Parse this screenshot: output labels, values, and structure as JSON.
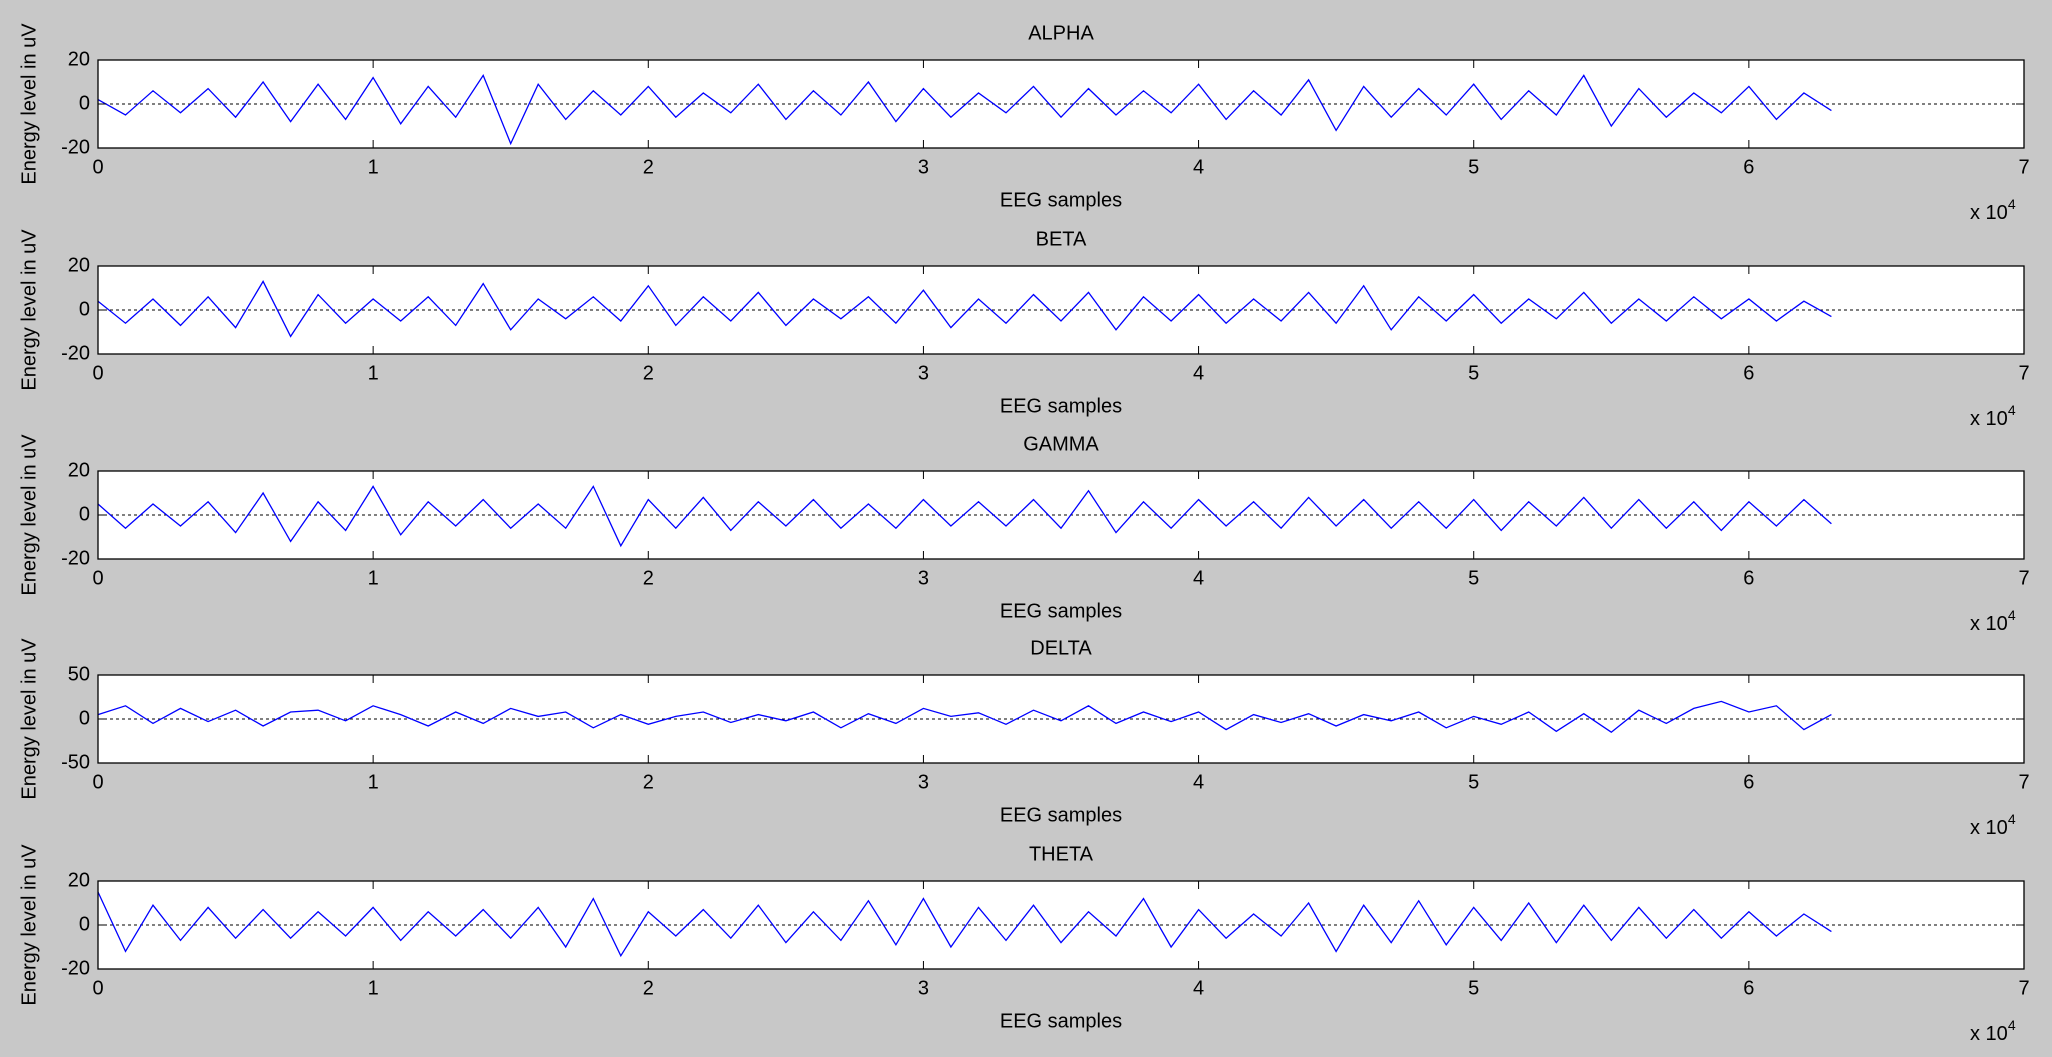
{
  "chart_data": [
    {
      "type": "line",
      "title": "ALPHA",
      "xlabel": "EEG samples",
      "ylabel": "Energy level in uV",
      "x_scale_label": "x 10",
      "x_scale_exponent": "4",
      "zero_line": true,
      "xlim": [
        0,
        70000
      ],
      "xticks": [
        0,
        {
          "value": 10000,
          "label": "1"
        },
        {
          "value": 20000,
          "label": "2"
        },
        {
          "value": 30000,
          "label": "3"
        },
        {
          "value": 40000,
          "label": "4"
        },
        {
          "value": 50000,
          "label": "5"
        },
        {
          "value": 60000,
          "label": "6"
        },
        {
          "value": 70000,
          "label": "7"
        }
      ],
      "ylim": [
        -20,
        20
      ],
      "yticks": [
        -20,
        0,
        20
      ],
      "x": [
        0,
        1000,
        2000,
        3000,
        4000,
        5000,
        6000,
        7000,
        8000,
        9000,
        10000,
        11000,
        12000,
        13000,
        14000,
        15000,
        16000,
        17000,
        18000,
        19000,
        20000,
        21000,
        22000,
        23000,
        24000,
        25000,
        26000,
        27000,
        28000,
        29000,
        30000,
        31000,
        32000,
        33000,
        34000,
        35000,
        36000,
        37000,
        38000,
        39000,
        40000,
        41000,
        42000,
        43000,
        44000,
        45000,
        46000,
        47000,
        48000,
        49000,
        50000,
        51000,
        52000,
        53000,
        54000,
        55000,
        56000,
        57000,
        58000,
        59000,
        60000,
        61000,
        62000,
        63000
      ],
      "series": [
        {
          "color": "#0000ff",
          "values": [
            2,
            -5,
            6,
            -4,
            7,
            -6,
            10,
            -8,
            9,
            -7,
            12,
            -9,
            8,
            -6,
            13,
            -18,
            9,
            -7,
            6,
            -5,
            8,
            -6,
            5,
            -4,
            9,
            -7,
            6,
            -5,
            10,
            -8,
            7,
            -6,
            5,
            -4,
            8,
            -6,
            7,
            -5,
            6,
            -4,
            9,
            -7,
            6,
            -5,
            11,
            -12,
            8,
            -6,
            7,
            -5,
            9,
            -7,
            6,
            -5,
            13,
            -10,
            7,
            -6,
            5,
            -4,
            8,
            -7,
            5,
            -3
          ]
        }
      ]
    },
    {
      "type": "line",
      "title": "BETA",
      "xlabel": "EEG samples",
      "ylabel": "Energy level in uV",
      "x_scale_label": "x 10",
      "x_scale_exponent": "4",
      "zero_line": true,
      "xlim": [
        0,
        70000
      ],
      "xticks": [
        0,
        {
          "value": 10000,
          "label": "1"
        },
        {
          "value": 20000,
          "label": "2"
        },
        {
          "value": 30000,
          "label": "3"
        },
        {
          "value": 40000,
          "label": "4"
        },
        {
          "value": 50000,
          "label": "5"
        },
        {
          "value": 60000,
          "label": "6"
        },
        {
          "value": 70000,
          "label": "7"
        }
      ],
      "ylim": [
        -20,
        20
      ],
      "yticks": [
        -20,
        0,
        20
      ],
      "x": [
        0,
        1000,
        2000,
        3000,
        4000,
        5000,
        6000,
        7000,
        8000,
        9000,
        10000,
        11000,
        12000,
        13000,
        14000,
        15000,
        16000,
        17000,
        18000,
        19000,
        20000,
        21000,
        22000,
        23000,
        24000,
        25000,
        26000,
        27000,
        28000,
        29000,
        30000,
        31000,
        32000,
        33000,
        34000,
        35000,
        36000,
        37000,
        38000,
        39000,
        40000,
        41000,
        42000,
        43000,
        44000,
        45000,
        46000,
        47000,
        48000,
        49000,
        50000,
        51000,
        52000,
        53000,
        54000,
        55000,
        56000,
        57000,
        58000,
        59000,
        60000,
        61000,
        62000,
        63000
      ],
      "series": [
        {
          "color": "#0000ff",
          "values": [
            4,
            -6,
            5,
            -7,
            6,
            -8,
            13,
            -12,
            7,
            -6,
            5,
            -5,
            6,
            -7,
            12,
            -9,
            5,
            -4,
            6,
            -5,
            11,
            -7,
            6,
            -5,
            8,
            -7,
            5,
            -4,
            6,
            -6,
            9,
            -8,
            5,
            -6,
            7,
            -5,
            8,
            -9,
            6,
            -5,
            7,
            -6,
            5,
            -5,
            8,
            -6,
            11,
            -9,
            6,
            -5,
            7,
            -6,
            5,
            -4,
            8,
            -6,
            5,
            -5,
            6,
            -4,
            5,
            -5,
            4,
            -3
          ]
        }
      ]
    },
    {
      "type": "line",
      "title": "GAMMA",
      "xlabel": "EEG samples",
      "ylabel": "Energy level in uV",
      "x_scale_label": "x 10",
      "x_scale_exponent": "4",
      "zero_line": true,
      "xlim": [
        0,
        70000
      ],
      "xticks": [
        0,
        {
          "value": 10000,
          "label": "1"
        },
        {
          "value": 20000,
          "label": "2"
        },
        {
          "value": 30000,
          "label": "3"
        },
        {
          "value": 40000,
          "label": "4"
        },
        {
          "value": 50000,
          "label": "5"
        },
        {
          "value": 60000,
          "label": "6"
        },
        {
          "value": 70000,
          "label": "7"
        }
      ],
      "ylim": [
        -20,
        20
      ],
      "yticks": [
        -20,
        0,
        20
      ],
      "x": [
        0,
        1000,
        2000,
        3000,
        4000,
        5000,
        6000,
        7000,
        8000,
        9000,
        10000,
        11000,
        12000,
        13000,
        14000,
        15000,
        16000,
        17000,
        18000,
        19000,
        20000,
        21000,
        22000,
        23000,
        24000,
        25000,
        26000,
        27000,
        28000,
        29000,
        30000,
        31000,
        32000,
        33000,
        34000,
        35000,
        36000,
        37000,
        38000,
        39000,
        40000,
        41000,
        42000,
        43000,
        44000,
        45000,
        46000,
        47000,
        48000,
        49000,
        50000,
        51000,
        52000,
        53000,
        54000,
        55000,
        56000,
        57000,
        58000,
        59000,
        60000,
        61000,
        62000,
        63000
      ],
      "series": [
        {
          "color": "#0000ff",
          "values": [
            5,
            -6,
            5,
            -5,
            6,
            -8,
            10,
            -12,
            6,
            -7,
            13,
            -9,
            6,
            -5,
            7,
            -6,
            5,
            -6,
            13,
            -14,
            7,
            -6,
            8,
            -7,
            6,
            -5,
            7,
            -6,
            5,
            -6,
            7,
            -5,
            6,
            -5,
            7,
            -6,
            11,
            -8,
            6,
            -6,
            7,
            -5,
            6,
            -6,
            8,
            -5,
            7,
            -6,
            6,
            -6,
            7,
            -7,
            6,
            -5,
            8,
            -6,
            7,
            -6,
            6,
            -7,
            6,
            -5,
            7,
            -4
          ]
        }
      ]
    },
    {
      "type": "line",
      "title": "DELTA",
      "xlabel": "EEG samples",
      "ylabel": "Energy level in uV",
      "x_scale_label": "x 10",
      "x_scale_exponent": "4",
      "zero_line": true,
      "xlim": [
        0,
        70000
      ],
      "xticks": [
        0,
        {
          "value": 10000,
          "label": "1"
        },
        {
          "value": 20000,
          "label": "2"
        },
        {
          "value": 30000,
          "label": "3"
        },
        {
          "value": 40000,
          "label": "4"
        },
        {
          "value": 50000,
          "label": "5"
        },
        {
          "value": 60000,
          "label": "6"
        },
        {
          "value": 70000,
          "label": "7"
        }
      ],
      "ylim": [
        -50,
        50
      ],
      "yticks": [
        -50,
        0,
        50
      ],
      "x": [
        0,
        1000,
        2000,
        3000,
        4000,
        5000,
        6000,
        7000,
        8000,
        9000,
        10000,
        11000,
        12000,
        13000,
        14000,
        15000,
        16000,
        17000,
        18000,
        19000,
        20000,
        21000,
        22000,
        23000,
        24000,
        25000,
        26000,
        27000,
        28000,
        29000,
        30000,
        31000,
        32000,
        33000,
        34000,
        35000,
        36000,
        37000,
        38000,
        39000,
        40000,
        41000,
        42000,
        43000,
        44000,
        45000,
        46000,
        47000,
        48000,
        49000,
        50000,
        51000,
        52000,
        53000,
        54000,
        55000,
        56000,
        57000,
        58000,
        59000,
        60000,
        61000,
        62000,
        63000
      ],
      "series": [
        {
          "color": "#0000ff",
          "values": [
            5,
            15,
            -5,
            12,
            -3,
            10,
            -8,
            8,
            10,
            -2,
            15,
            5,
            -8,
            8,
            -5,
            12,
            3,
            8,
            -10,
            5,
            -6,
            3,
            8,
            -4,
            5,
            -2,
            8,
            -10,
            6,
            -5,
            12,
            3,
            7,
            -6,
            10,
            -2,
            15,
            -5,
            8,
            -3,
            8,
            -12,
            5,
            -4,
            6,
            -8,
            5,
            -2,
            8,
            -10,
            3,
            -6,
            8,
            -14,
            6,
            -15,
            10,
            -5,
            12,
            20,
            8,
            15,
            -12,
            5
          ]
        }
      ]
    },
    {
      "type": "line",
      "title": "THETA",
      "xlabel": "EEG samples",
      "ylabel": "Energy level in uV",
      "x_scale_label": "x 10",
      "x_scale_exponent": "4",
      "zero_line": true,
      "xlim": [
        0,
        70000
      ],
      "xticks": [
        0,
        {
          "value": 10000,
          "label": "1"
        },
        {
          "value": 20000,
          "label": "2"
        },
        {
          "value": 30000,
          "label": "3"
        },
        {
          "value": 40000,
          "label": "4"
        },
        {
          "value": 50000,
          "label": "5"
        },
        {
          "value": 60000,
          "label": "6"
        },
        {
          "value": 70000,
          "label": "7"
        }
      ],
      "ylim": [
        -20,
        20
      ],
      "yticks": [
        -20,
        0,
        20
      ],
      "x": [
        0,
        1000,
        2000,
        3000,
        4000,
        5000,
        6000,
        7000,
        8000,
        9000,
        10000,
        11000,
        12000,
        13000,
        14000,
        15000,
        16000,
        17000,
        18000,
        19000,
        20000,
        21000,
        22000,
        23000,
        24000,
        25000,
        26000,
        27000,
        28000,
        29000,
        30000,
        31000,
        32000,
        33000,
        34000,
        35000,
        36000,
        37000,
        38000,
        39000,
        40000,
        41000,
        42000,
        43000,
        44000,
        45000,
        46000,
        47000,
        48000,
        49000,
        50000,
        51000,
        52000,
        53000,
        54000,
        55000,
        56000,
        57000,
        58000,
        59000,
        60000,
        61000,
        62000,
        63000
      ],
      "series": [
        {
          "color": "#0000ff",
          "values": [
            15,
            -12,
            9,
            -7,
            8,
            -6,
            7,
            -6,
            6,
            -5,
            8,
            -7,
            6,
            -5,
            7,
            -6,
            8,
            -10,
            12,
            -14,
            6,
            -5,
            7,
            -6,
            9,
            -8,
            6,
            -7,
            11,
            -9,
            12,
            -10,
            8,
            -7,
            9,
            -8,
            6,
            -5,
            12,
            -10,
            7,
            -6,
            5,
            -5,
            10,
            -12,
            9,
            -8,
            11,
            -9,
            8,
            -7,
            10,
            -8,
            9,
            -7,
            8,
            -6,
            7,
            -6,
            6,
            -5,
            5,
            -3
          ]
        }
      ]
    }
  ]
}
